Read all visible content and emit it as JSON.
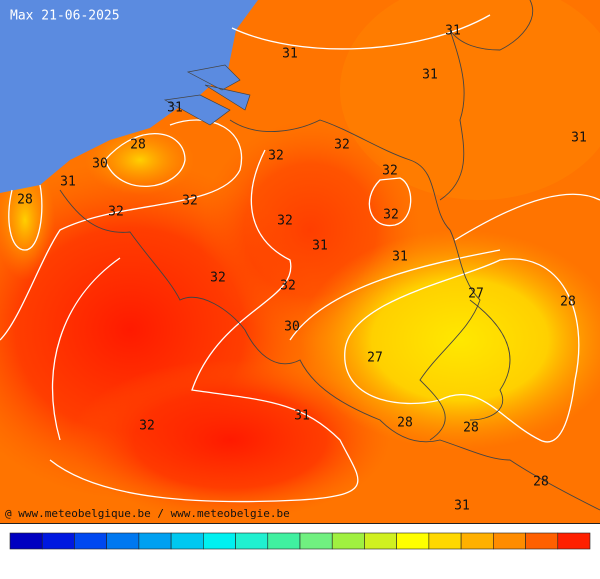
{
  "header": {
    "title": "Max 21-06-2025"
  },
  "contour_labels": [
    31,
    31,
    31,
    31,
    31,
    28,
    32,
    32,
    30,
    32,
    31,
    28,
    32,
    32,
    32,
    32,
    31,
    31,
    32,
    32,
    27,
    28,
    30,
    27,
    31,
    28,
    32,
    28,
    28,
    31
  ],
  "footer": {
    "credit": "@ www.meteobelgique.be / www.meteobelgie.be"
  }
}
